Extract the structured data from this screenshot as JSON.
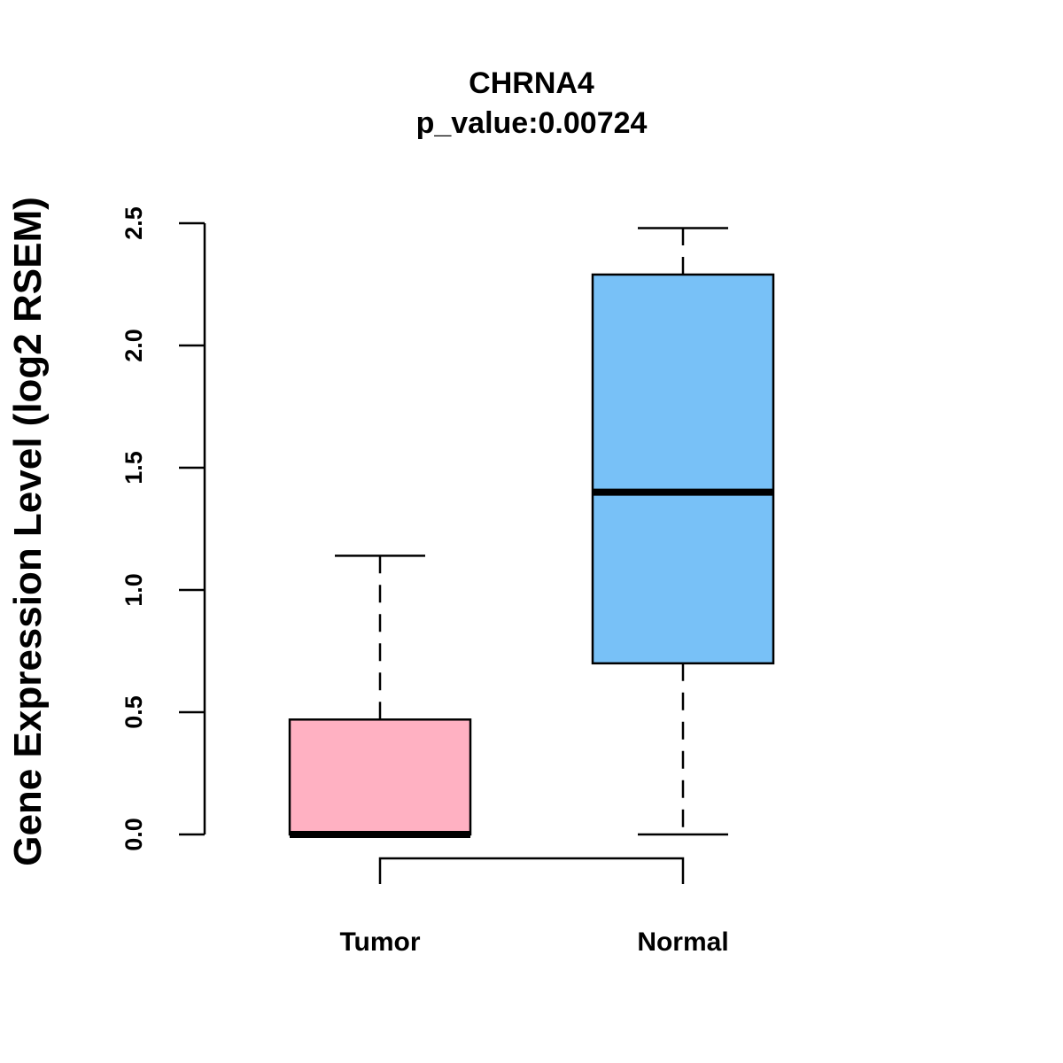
{
  "chart_data": {
    "type": "boxplot",
    "title": "CHRNA4",
    "subtitle": "p_value:0.00724",
    "ylabel": "Gene Expression Level (log2 RSEM)",
    "xlabel": "",
    "ylim": [
      0,
      2.5
    ],
    "yticks": [
      "0.0",
      "0.5",
      "1.0",
      "1.5",
      "2.0",
      "2.5"
    ],
    "categories": [
      "Tumor",
      "Normal"
    ],
    "series": [
      {
        "name": "Tumor",
        "min": 0.0,
        "q1": 0.0,
        "median": 0.0,
        "q3": 0.47,
        "max": 1.14,
        "color": "#ffb1c2"
      },
      {
        "name": "Normal",
        "min": 0.0,
        "q1": 0.7,
        "median": 1.4,
        "q3": 2.29,
        "max": 2.48,
        "color": "#78c1f7"
      }
    ],
    "comparison_bracket": [
      "Tumor",
      "Normal"
    ]
  }
}
